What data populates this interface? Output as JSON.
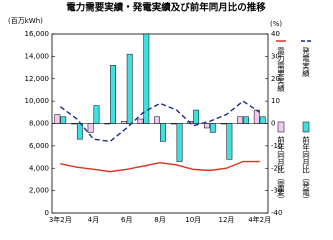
{
  "chart_data": {
    "type": "combo",
    "title": "電力需要実績・発電実績及び前年同月比の推移",
    "y_label": "(百万kWh)",
    "y2_label": "(%)",
    "categories": [
      "3年2月",
      null,
      "4月",
      null,
      "6月",
      null,
      "8月",
      null,
      "10月",
      null,
      "12月",
      null,
      "4年2月"
    ],
    "series": [
      {
        "name": "電力需要実績",
        "kind": "line",
        "color": "#e03020",
        "values": [
          4400,
          4100,
          3900,
          3700,
          3900,
          4200,
          4500,
          4300,
          3900,
          3800,
          4000,
          4600,
          4600
        ]
      },
      {
        "name": "発電実績",
        "kind": "dashed-line",
        "color": "#1a2a90",
        "values": [
          9500,
          8400,
          6600,
          6400,
          7600,
          9000,
          9800,
          9200,
          7800,
          8200,
          8800,
          10000,
          9000
        ]
      },
      {
        "name": "前年同月比（需要）",
        "kind": "bar",
        "axis": "y2",
        "color": "#f0c8f0",
        "values": [
          4,
          0,
          -4,
          0,
          1,
          2,
          3,
          0,
          1,
          -2,
          0,
          3,
          6
        ]
      },
      {
        "name": "前年同月比（発電）",
        "kind": "bar",
        "axis": "y2",
        "color": "#40e0e0",
        "values": [
          3,
          -7,
          8,
          26,
          31,
          40,
          -8,
          -17,
          6,
          -4,
          -16,
          3,
          3
        ]
      }
    ],
    "ylim": [
      0,
      16000
    ],
    "yticks": [
      0,
      {
        "value": 2000,
        "label": "2,000"
      },
      {
        "value": 4000,
        "label": "4,000"
      },
      {
        "value": 6000,
        "label": "6,000"
      },
      {
        "value": 8000,
        "label": "8,000"
      },
      {
        "value": 10000,
        "label": "10,000"
      },
      {
        "value": 12000,
        "label": "12,000"
      },
      {
        "value": 14000,
        "label": "14,000"
      },
      {
        "value": 16000,
        "label": "16,000"
      }
    ],
    "y2lim": [
      -40,
      40
    ],
    "y2ticks": [
      -40,
      -30,
      -20,
      -10,
      0,
      10,
      20,
      30,
      40
    ]
  }
}
